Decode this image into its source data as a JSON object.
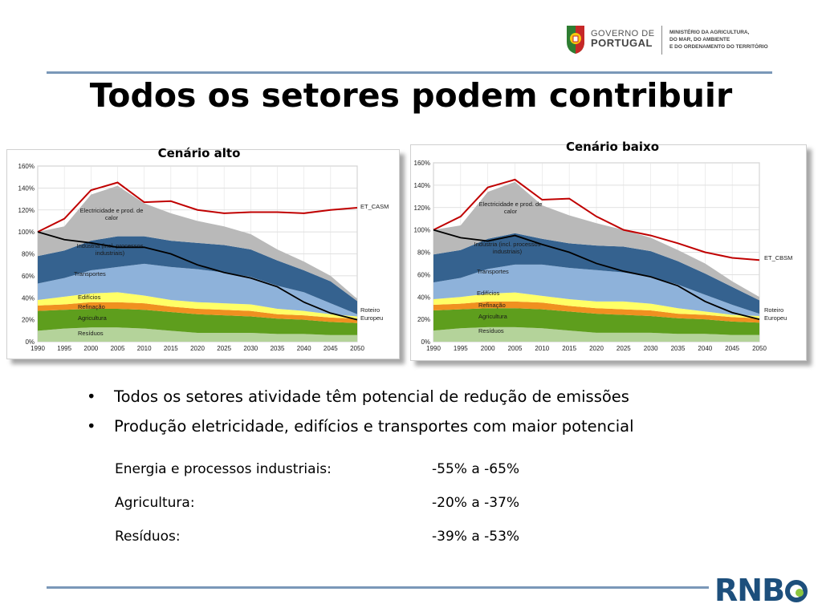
{
  "header": {
    "gov_line1": "GOVERNO DE",
    "gov_line2": "PORTUGAL",
    "ministry_line1": "MINISTÉRIO DA AGRICULTURA,",
    "ministry_line2": "DO MAR, DO AMBIENTE",
    "ministry_line3": "E DO ORDENAMENTO DO TERRITÓRIO"
  },
  "title": "Todos os setores podem contribuir",
  "colors": {
    "rule": "#7a98b8",
    "residuos": "#b4d39a",
    "agricultura": "#5e9e1d",
    "refinacao": "#f09020",
    "edificios": "#ffff66",
    "transportes": "#8eb2da",
    "industria": "#35628f",
    "electricidade": "#b9b9b9",
    "cap_line": "#c00000",
    "roadmap_line": "#000000",
    "rnbc": "#1d4f7c",
    "rnbc_dot": "#8cc63f"
  },
  "chart_data": [
    {
      "type": "area",
      "scenario_label": "Cenário alto",
      "x": [
        1990,
        1995,
        2000,
        2005,
        2010,
        2015,
        2020,
        2025,
        2030,
        2035,
        2040,
        2045,
        2050
      ],
      "x_tick_labels": [
        "1990",
        "1995",
        "2000",
        "2005",
        "2010",
        "2015",
        "2020",
        "2025",
        "2030",
        "2035",
        "2040",
        "2045",
        "2050"
      ],
      "y_tick_labels": [
        "0%",
        "20%",
        "40%",
        "60%",
        "80%",
        "100%",
        "120%",
        "140%",
        "160%"
      ],
      "ylim": [
        0,
        160
      ],
      "grid": true,
      "stacked_series": [
        {
          "name": "Resíduos",
          "key": "residuos",
          "values": [
            10,
            12,
            13,
            13,
            12,
            10,
            8,
            8,
            8,
            7,
            7,
            6,
            6
          ]
        },
        {
          "name": "Agricultura",
          "key": "agricultura",
          "values": [
            18,
            17,
            17,
            17,
            17,
            17,
            17,
            16,
            15,
            14,
            13,
            12,
            11
          ]
        },
        {
          "name": "Refinação",
          "key": "refinacao",
          "values": [
            5,
            5,
            6,
            6,
            6,
            5,
            5,
            5,
            5,
            4,
            4,
            4,
            4
          ]
        },
        {
          "name": "Edifícios",
          "key": "edificios",
          "values": [
            5,
            7,
            8,
            9,
            7,
            6,
            6,
            6,
            6,
            5,
            4,
            3,
            2
          ]
        },
        {
          "name": "Transportes",
          "key": "transportes",
          "values": [
            15,
            17,
            21,
            23,
            29,
            30,
            30,
            28,
            25,
            21,
            17,
            10,
            2
          ]
        },
        {
          "name": "Indústria (incl. processos industriais)",
          "key": "industria",
          "values": [
            25,
            25,
            27,
            28,
            25,
            24,
            24,
            25,
            25,
            23,
            20,
            20,
            12
          ]
        },
        {
          "name": "Electricidade e prod. de calor",
          "key": "electricidade",
          "values": [
            22,
            22,
            42,
            46,
            30,
            25,
            20,
            17,
            14,
            10,
            8,
            5,
            2
          ]
        }
      ],
      "lines": [
        {
          "name": "ET_CASM",
          "key": "cap_line",
          "values": [
            100,
            112,
            138,
            145,
            127,
            128,
            120,
            117,
            118,
            118,
            117,
            120,
            122
          ]
        },
        {
          "name": "Roteiro Europeu",
          "key": "roadmap_line",
          "values": [
            100,
            93,
            90,
            86,
            86,
            80,
            70,
            63,
            58,
            50,
            36,
            26,
            20
          ]
        }
      ]
    },
    {
      "type": "area",
      "scenario_label": "Cenário baixo",
      "x": [
        1990,
        1995,
        2000,
        2005,
        2010,
        2015,
        2020,
        2025,
        2030,
        2035,
        2040,
        2045,
        2050
      ],
      "x_tick_labels": [
        "1990",
        "1995",
        "2000",
        "2005",
        "2010",
        "2015",
        "2020",
        "2025",
        "2030",
        "2035",
        "2040",
        "2045",
        "2050"
      ],
      "y_tick_labels": [
        "0%",
        "20%",
        "40%",
        "60%",
        "80%",
        "100%",
        "120%",
        "140%",
        "160%"
      ],
      "ylim": [
        0,
        160
      ],
      "grid": true,
      "stacked_series": [
        {
          "name": "Resíduos",
          "key": "residuos",
          "values": [
            10,
            12,
            13,
            13,
            12,
            10,
            8,
            8,
            8,
            7,
            7,
            6,
            6
          ]
        },
        {
          "name": "Agricultura",
          "key": "agricultura",
          "values": [
            18,
            17,
            17,
            17,
            17,
            17,
            17,
            16,
            15,
            14,
            13,
            12,
            11
          ]
        },
        {
          "name": "Refinação",
          "key": "refinacao",
          "values": [
            5,
            5,
            6,
            6,
            6,
            5,
            5,
            5,
            5,
            4,
            4,
            4,
            4
          ]
        },
        {
          "name": "Edifícios",
          "key": "edificios",
          "values": [
            5,
            6,
            7,
            8,
            6,
            6,
            6,
            7,
            6,
            5,
            3,
            2,
            2
          ]
        },
        {
          "name": "Transportes",
          "key": "transportes",
          "values": [
            15,
            17,
            22,
            25,
            28,
            28,
            28,
            26,
            24,
            21,
            15,
            9,
            2
          ]
        },
        {
          "name": "Indústria (incl. processos industriais)",
          "key": "industria",
          "values": [
            25,
            25,
            27,
            28,
            23,
            22,
            22,
            23,
            23,
            21,
            19,
            16,
            12
          ]
        },
        {
          "name": "Electricidade e prod. de calor",
          "key": "electricidade",
          "values": [
            22,
            22,
            42,
            46,
            30,
            25,
            20,
            15,
            12,
            10,
            9,
            5,
            3
          ]
        }
      ],
      "lines": [
        {
          "name": "ET_CBSM",
          "key": "cap_line",
          "values": [
            100,
            112,
            138,
            145,
            127,
            128,
            112,
            100,
            95,
            88,
            80,
            75,
            73
          ]
        },
        {
          "name": "Roteiro Europeu",
          "key": "roadmap_line",
          "values": [
            100,
            93,
            90,
            95,
            87,
            80,
            70,
            63,
            58,
            50,
            36,
            26,
            20
          ]
        }
      ]
    }
  ],
  "bullets": [
    "Todos os setores atividade têm potencial de redução de emissões",
    "Produção eletricidade, edifícios e transportes com maior potencial"
  ],
  "reductions": [
    {
      "sector": "Energia e processos industriais:",
      "range": "-55% a -65%"
    },
    {
      "sector": "Agricultura:",
      "range": "-20% a -37%"
    },
    {
      "sector": "Resíduos:",
      "range": "-39% a -53%"
    }
  ],
  "footer": {
    "brand": "RNB",
    "brand_last_letter": "C"
  }
}
